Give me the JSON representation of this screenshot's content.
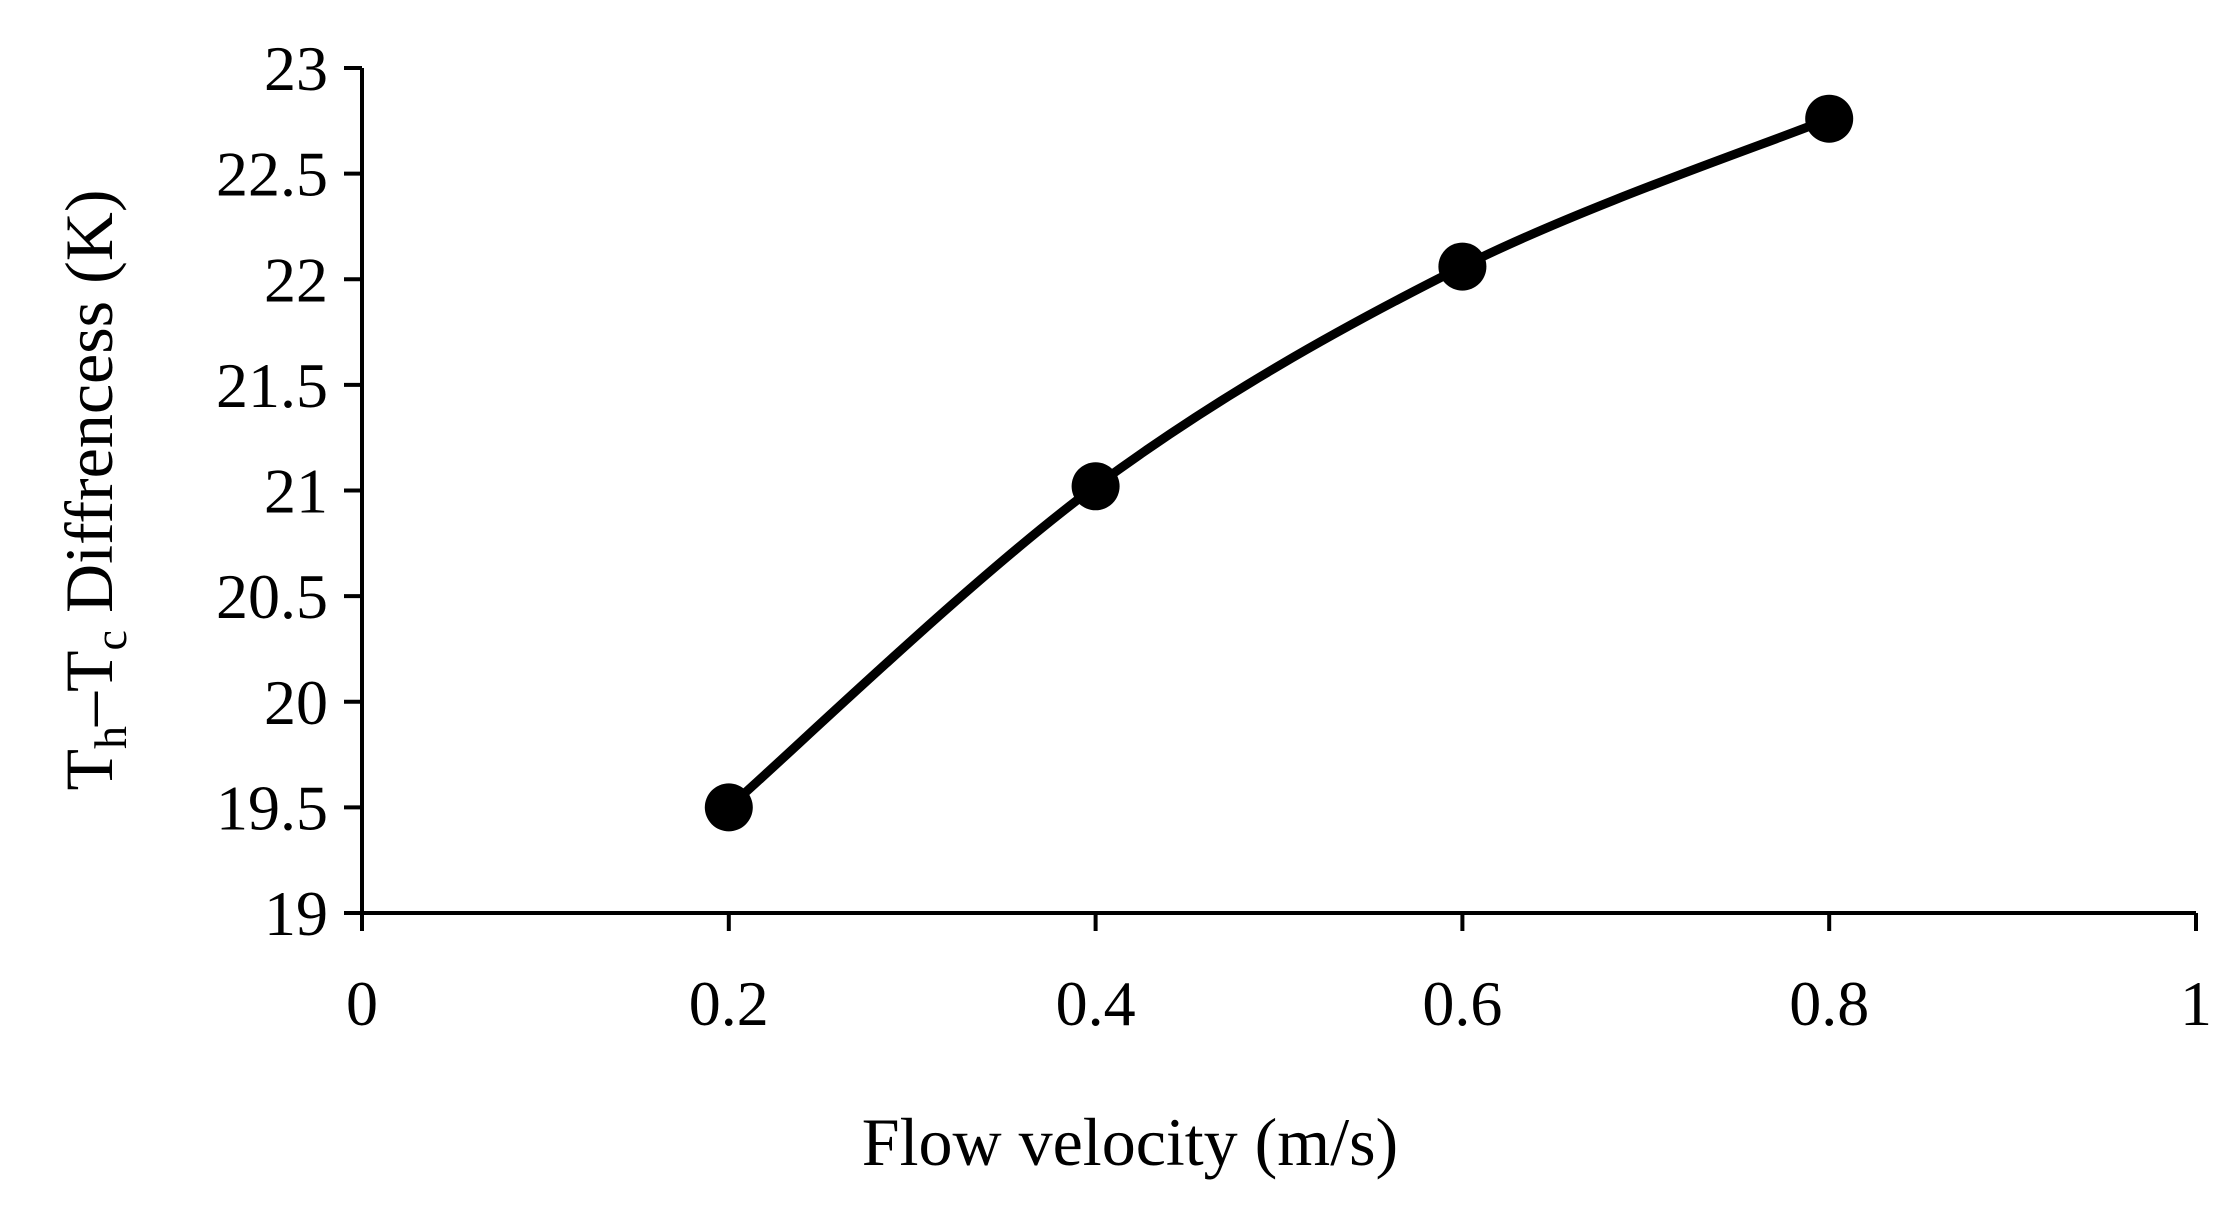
{
  "chart_data": {
    "type": "line",
    "title": "",
    "xlabel": "Flow velocity (m/s)",
    "ylabel": {
      "t1": "T",
      "sub1": "h",
      "dash": "–",
      "t2": "T",
      "sub2": "c",
      "rest": " Diffrencess (K)"
    },
    "xlim": [
      0,
      1
    ],
    "ylim": [
      19,
      23
    ],
    "xticks": [
      0,
      0.2,
      0.4,
      0.6,
      0.8,
      1
    ],
    "xtick_labels": [
      "0",
      "0.2",
      "0.4",
      "0.6",
      "0.8",
      "1"
    ],
    "yticks": [
      19,
      19.5,
      20,
      20.5,
      21,
      21.5,
      22,
      22.5,
      23
    ],
    "ytick_labels": [
      "19",
      "19.5",
      "20",
      "20.5",
      "21",
      "21.5",
      "22",
      "22.5",
      "23"
    ],
    "grid": false,
    "series": [
      {
        "name": "Th-Tc",
        "x": [
          0.2,
          0.4,
          0.6,
          0.8
        ],
        "values": [
          19.5,
          21.02,
          22.06,
          22.76
        ],
        "color": "#000000",
        "smooth": true,
        "marker": "circle"
      }
    ]
  }
}
